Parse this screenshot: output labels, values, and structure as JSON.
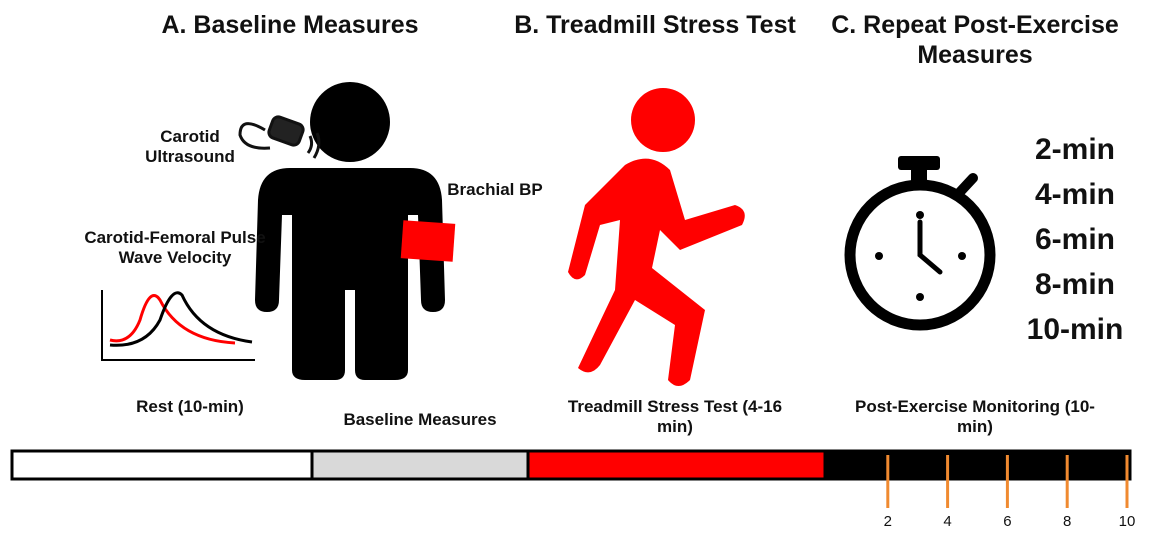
{
  "panels": [
    {
      "title": "A. Baseline Measures"
    },
    {
      "title": "B. Treadmill Stress Test"
    },
    {
      "title": "C. Repeat Post-Exercise Measures"
    }
  ],
  "labels": {
    "carotid_ultrasound": "Carotid Ultrasound",
    "brachial_bp": "Brachial BP",
    "pwv": "Carotid-Femoral Pulse Wave Velocity"
  },
  "times": [
    "2-min",
    "4-min",
    "6-min",
    "8-min",
    "10-min"
  ],
  "timeline": {
    "phases": [
      "Rest (10-min)",
      "Baseline Measures",
      "Treadmill Stress Test (4-16 min)",
      "Post-Exercise Monitoring (10-min)"
    ],
    "ticks": [
      2,
      4,
      6,
      8,
      10
    ]
  }
}
